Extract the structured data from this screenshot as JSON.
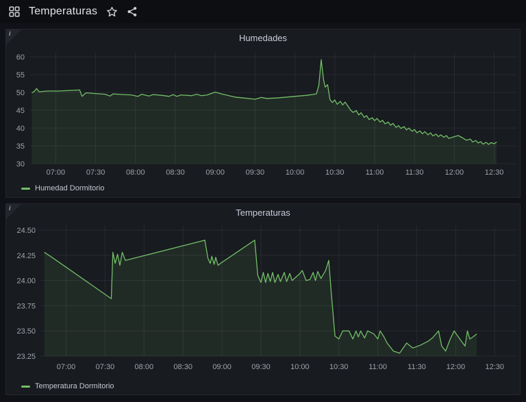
{
  "header": {
    "title": "Temperaturas",
    "icon_names": [
      "apps-icon",
      "star-icon",
      "share-icon"
    ]
  },
  "panels": [
    {
      "title": "Humedades",
      "legend_label": "Humedad Dormitorio",
      "info_corner": "i"
    },
    {
      "title": "Temperaturas",
      "legend_label": "Temperatura Dormitorio",
      "info_corner": "i"
    }
  ],
  "colors": {
    "series_green": "#73bf69",
    "series_fill": "rgba(115,191,105,0.10)",
    "grid": "rgba(204,204,220,0.09)",
    "axis_text": "#a0a4ab",
    "panel_bg": "#181b1f",
    "page_bg": "#111217"
  },
  "chart_data": [
    {
      "type": "line",
      "title": "Humedades",
      "xlabel": "",
      "ylabel": "",
      "grid": true,
      "legend_position": "bottom-left",
      "xlim": [
        6.67,
        12.77
      ],
      "ylim": [
        30,
        60
      ],
      "x_ticks": [
        [
          7,
          "07:00"
        ],
        [
          7.5,
          "07:30"
        ],
        [
          8,
          "08:00"
        ],
        [
          8.5,
          "08:30"
        ],
        [
          9,
          "09:00"
        ],
        [
          9.5,
          "09:30"
        ],
        [
          10,
          "10:00"
        ],
        [
          10.5,
          "10:30"
        ],
        [
          11,
          "11:00"
        ],
        [
          11.5,
          "11:30"
        ],
        [
          12,
          "12:00"
        ],
        [
          12.5,
          "12:30"
        ]
      ],
      "y_ticks": [
        [
          30,
          "30"
        ],
        [
          35,
          "35"
        ],
        [
          40,
          "40"
        ],
        [
          45,
          "45"
        ],
        [
          50,
          "50"
        ],
        [
          55,
          "55"
        ],
        [
          60,
          "60"
        ]
      ],
      "series": [
        {
          "name": "Humedad Dormitorio",
          "points": [
            [
              6.7,
              49.9
            ],
            [
              6.73,
              50.3
            ],
            [
              6.76,
              51.1
            ],
            [
              6.79,
              50.2
            ],
            [
              6.9,
              50.4
            ],
            [
              7.05,
              50.4
            ],
            [
              7.2,
              50.6
            ],
            [
              7.3,
              50.7
            ],
            [
              7.33,
              48.9
            ],
            [
              7.38,
              49.9
            ],
            [
              7.5,
              49.7
            ],
            [
              7.62,
              49.5
            ],
            [
              7.68,
              49.0
            ],
            [
              7.72,
              49.6
            ],
            [
              7.85,
              49.4
            ],
            [
              7.95,
              49.3
            ],
            [
              8.03,
              48.9
            ],
            [
              8.08,
              49.5
            ],
            [
              8.17,
              49.0
            ],
            [
              8.22,
              49.4
            ],
            [
              8.33,
              49.2
            ],
            [
              8.42,
              48.9
            ],
            [
              8.47,
              49.4
            ],
            [
              8.52,
              48.9
            ],
            [
              8.57,
              49.3
            ],
            [
              8.7,
              49.1
            ],
            [
              8.77,
              49.5
            ],
            [
              8.83,
              49.1
            ],
            [
              8.9,
              49.3
            ],
            [
              9.0,
              50.1
            ],
            [
              9.08,
              49.6
            ],
            [
              9.25,
              48.7
            ],
            [
              9.42,
              48.3
            ],
            [
              9.5,
              48.1
            ],
            [
              9.58,
              48.6
            ],
            [
              9.65,
              48.3
            ],
            [
              9.8,
              48.5
            ],
            [
              10.0,
              48.9
            ],
            [
              10.15,
              49.2
            ],
            [
              10.27,
              49.6
            ],
            [
              10.3,
              52.0
            ],
            [
              10.33,
              59.2
            ],
            [
              10.36,
              53.5
            ],
            [
              10.38,
              51.5
            ],
            [
              10.41,
              52.2
            ],
            [
              10.44,
              48.0
            ],
            [
              10.47,
              47.2
            ],
            [
              10.5,
              47.9
            ],
            [
              10.53,
              46.7
            ],
            [
              10.57,
              47.5
            ],
            [
              10.6,
              46.5
            ],
            [
              10.63,
              47.3
            ],
            [
              10.67,
              46.0
            ],
            [
              10.7,
              45.0
            ],
            [
              10.73,
              44.4
            ],
            [
              10.77,
              44.9
            ],
            [
              10.8,
              43.7
            ],
            [
              10.83,
              44.3
            ],
            [
              10.87,
              43.0
            ],
            [
              10.9,
              43.5
            ],
            [
              10.93,
              42.4
            ],
            [
              10.97,
              42.9
            ],
            [
              11.0,
              42.1
            ],
            [
              11.03,
              42.7
            ],
            [
              11.07,
              41.7
            ],
            [
              11.1,
              42.2
            ],
            [
              11.13,
              41.2
            ],
            [
              11.17,
              41.7
            ],
            [
              11.2,
              40.8
            ],
            [
              11.23,
              41.3
            ],
            [
              11.27,
              40.2
            ],
            [
              11.3,
              40.7
            ],
            [
              11.33,
              39.9
            ],
            [
              11.37,
              40.4
            ],
            [
              11.4,
              39.5
            ],
            [
              11.43,
              40.0
            ],
            [
              11.47,
              39.1
            ],
            [
              11.5,
              39.6
            ],
            [
              11.53,
              38.7
            ],
            [
              11.57,
              39.2
            ],
            [
              11.6,
              38.4
            ],
            [
              11.63,
              39.0
            ],
            [
              11.67,
              38.1
            ],
            [
              11.7,
              38.7
            ],
            [
              11.73,
              37.8
            ],
            [
              11.77,
              38.3
            ],
            [
              11.8,
              37.6
            ],
            [
              11.83,
              38.1
            ],
            [
              11.87,
              37.4
            ],
            [
              11.9,
              37.9
            ],
            [
              11.93,
              37.1
            ],
            [
              12.0,
              37.6
            ],
            [
              12.05,
              37.9
            ],
            [
              12.1,
              37.3
            ],
            [
              12.15,
              36.6
            ],
            [
              12.2,
              36.9
            ],
            [
              12.23,
              36.1
            ],
            [
              12.27,
              36.5
            ],
            [
              12.3,
              35.8
            ],
            [
              12.33,
              36.2
            ],
            [
              12.36,
              35.5
            ],
            [
              12.4,
              36.0
            ],
            [
              12.43,
              35.4
            ],
            [
              12.46,
              35.9
            ],
            [
              12.5,
              35.6
            ],
            [
              12.53,
              36.1
            ]
          ]
        }
      ]
    },
    {
      "type": "line",
      "title": "Temperaturas",
      "xlabel": "",
      "ylabel": "",
      "grid": true,
      "legend_position": "bottom-left",
      "xlim": [
        6.67,
        12.77
      ],
      "ylim": [
        23.25,
        24.5
      ],
      "x_ticks": [
        [
          7,
          "07:00"
        ],
        [
          7.5,
          "07:30"
        ],
        [
          8,
          "08:00"
        ],
        [
          8.5,
          "08:30"
        ],
        [
          9,
          "09:00"
        ],
        [
          9.5,
          "09:30"
        ],
        [
          10,
          "10:00"
        ],
        [
          10.5,
          "10:30"
        ],
        [
          11,
          "11:00"
        ],
        [
          11.5,
          "11:30"
        ],
        [
          12,
          "12:00"
        ],
        [
          12.5,
          "12:30"
        ]
      ],
      "y_ticks": [
        [
          23.25,
          "23.25"
        ],
        [
          23.5,
          "23.50"
        ],
        [
          23.75,
          "23.75"
        ],
        [
          24.0,
          "24.00"
        ],
        [
          24.25,
          "24.25"
        ],
        [
          24.5,
          "24.50"
        ]
      ],
      "series": [
        {
          "name": "Temperatura Dormitorio",
          "points": [
            [
              6.72,
              24.28
            ],
            [
              6.8,
              24.24
            ],
            [
              7.58,
              23.82
            ],
            [
              7.6,
              24.28
            ],
            [
              7.63,
              24.17
            ],
            [
              7.66,
              24.26
            ],
            [
              7.69,
              24.15
            ],
            [
              7.72,
              24.28
            ],
            [
              7.76,
              24.2
            ],
            [
              8.78,
              24.4
            ],
            [
              8.82,
              24.22
            ],
            [
              8.85,
              24.17
            ],
            [
              8.87,
              24.24
            ],
            [
              8.9,
              24.16
            ],
            [
              8.92,
              24.23
            ],
            [
              8.95,
              24.15
            ],
            [
              8.98,
              24.17
            ],
            [
              9.42,
              24.4
            ],
            [
              9.46,
              24.05
            ],
            [
              9.5,
              23.98
            ],
            [
              9.53,
              24.08
            ],
            [
              9.56,
              23.98
            ],
            [
              9.59,
              24.07
            ],
            [
              9.62,
              23.99
            ],
            [
              9.65,
              24.08
            ],
            [
              9.68,
              23.98
            ],
            [
              9.72,
              24.06
            ],
            [
              9.75,
              23.99
            ],
            [
              9.8,
              24.08
            ],
            [
              9.83,
              23.99
            ],
            [
              9.87,
              24.07
            ],
            [
              9.9,
              24.0
            ],
            [
              10.0,
              24.07
            ],
            [
              10.03,
              24.1
            ],
            [
              10.08,
              24.0
            ],
            [
              10.13,
              24.01
            ],
            [
              10.17,
              24.08
            ],
            [
              10.2,
              24.0
            ],
            [
              10.23,
              24.09
            ],
            [
              10.27,
              24.02
            ],
            [
              10.33,
              24.1
            ],
            [
              10.37,
              24.2
            ],
            [
              10.4,
              23.9
            ],
            [
              10.45,
              23.45
            ],
            [
              10.5,
              23.42
            ],
            [
              10.55,
              23.5
            ],
            [
              10.63,
              23.5
            ],
            [
              10.68,
              23.42
            ],
            [
              10.72,
              23.5
            ],
            [
              10.75,
              23.44
            ],
            [
              10.78,
              23.5
            ],
            [
              10.83,
              23.43
            ],
            [
              10.87,
              23.5
            ],
            [
              10.95,
              23.47
            ],
            [
              11.0,
              23.42
            ],
            [
              11.03,
              23.5
            ],
            [
              11.08,
              23.44
            ],
            [
              11.12,
              23.38
            ],
            [
              11.2,
              23.3
            ],
            [
              11.28,
              23.28
            ],
            [
              11.37,
              23.38
            ],
            [
              11.45,
              23.33
            ],
            [
              11.55,
              23.36
            ],
            [
              11.65,
              23.4
            ],
            [
              11.7,
              23.43
            ],
            [
              11.78,
              23.5
            ],
            [
              11.82,
              23.35
            ],
            [
              11.87,
              23.3
            ],
            [
              11.93,
              23.42
            ],
            [
              11.98,
              23.5
            ],
            [
              12.07,
              23.4
            ],
            [
              12.12,
              23.35
            ],
            [
              12.15,
              23.5
            ],
            [
              12.18,
              23.42
            ],
            [
              12.22,
              23.44
            ],
            [
              12.27,
              23.47
            ]
          ]
        }
      ]
    }
  ]
}
